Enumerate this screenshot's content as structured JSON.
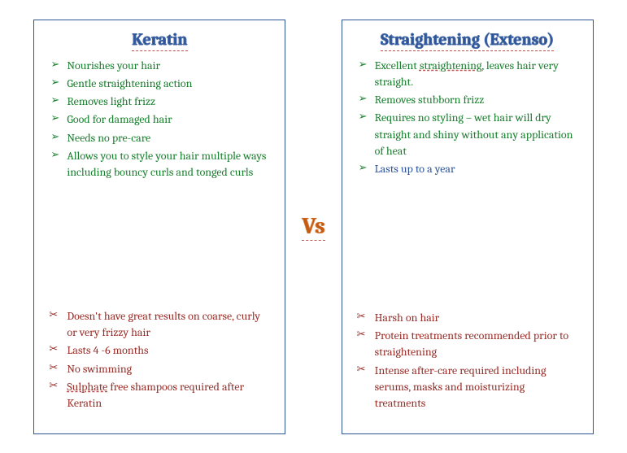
{
  "vs_label": "Vs",
  "colors": {
    "border": "#2f5597",
    "title": "#2f5597",
    "pro_text": "#1b8030",
    "pro_alt_text": "#2f5597",
    "con_text": "#9a2f2a",
    "vs_text": "#c55a11",
    "dash_underline": "#c0504d"
  },
  "typography": {
    "body_font": "Cambria, Georgia, serif",
    "title_fontsize": 20,
    "list_fontsize": 14,
    "vs_fontsize": 28
  },
  "left": {
    "title": "Keratin",
    "pros": [
      {
        "text": "Nourishes your hair",
        "alt": false
      },
      {
        "text": "Gentle straightening action",
        "alt": false
      },
      {
        "text": "Removes light frizz",
        "alt": false
      },
      {
        "text": "Good for damaged hair",
        "alt": false
      },
      {
        "text": "Needs no pre-care",
        "alt": false
      },
      {
        "text": "Allows you to style your hair multiple ways including bouncy curls and tonged curls",
        "alt": false
      }
    ],
    "cons": [
      {
        "text": "Doesn't have great results on coarse, curly or very frizzy hair"
      },
      {
        "text": "Lasts 4 -6 months"
      },
      {
        "text": "No swimming"
      },
      {
        "html": "<span class=\"under\">Sulphate</span> free shampoos required after Keratin"
      }
    ]
  },
  "right": {
    "title": "Straightening (Extenso)",
    "pros": [
      {
        "html": "Excellent <span class=\"under\">straightening,</span> leaves hair very straight.",
        "alt": false
      },
      {
        "text": "Removes stubborn frizz",
        "alt": false
      },
      {
        "text": "Requires no styling – wet hair will dry straight and shiny without any application of heat",
        "alt": false
      },
      {
        "text": "Lasts up to a year",
        "alt": true
      }
    ],
    "cons": [
      {
        "text": "Harsh on hair"
      },
      {
        "text": "Protein treatments recommended prior to straightening"
      },
      {
        "text": "Intense after-care required including serums, masks and moisturizing treatments"
      }
    ]
  }
}
